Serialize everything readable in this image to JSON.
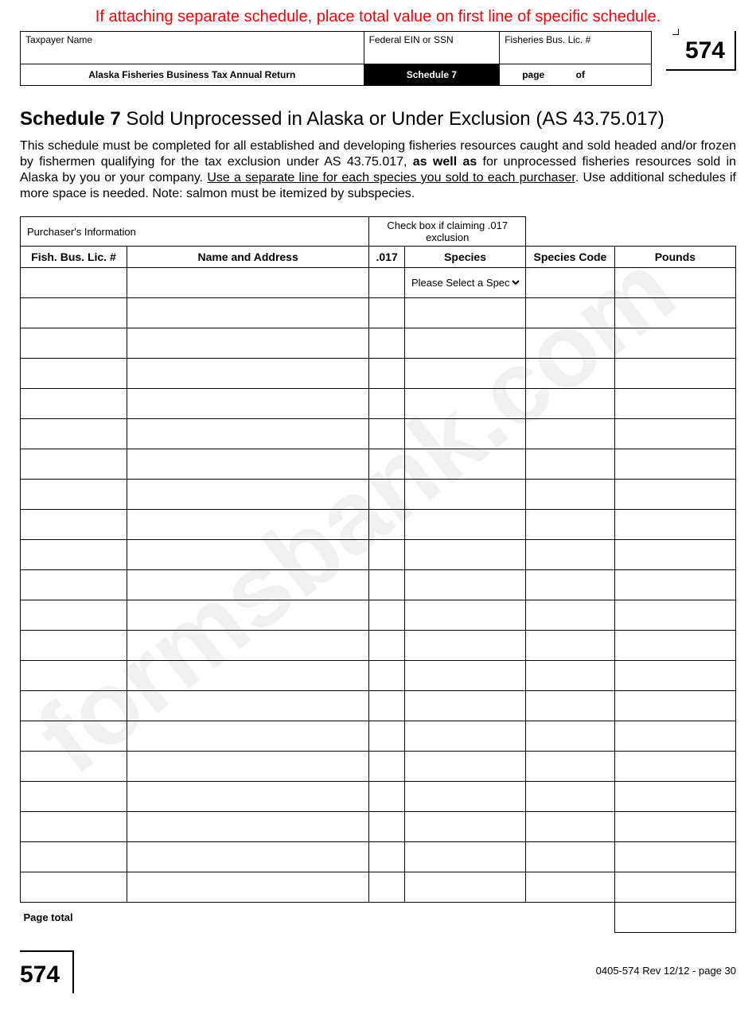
{
  "colors": {
    "notice_red": "#ff0000",
    "text_black": "#000000",
    "schedule_bg": "#000000",
    "schedule_fg": "#ffffff",
    "watermark_gray": "#555555"
  },
  "topNotice": "If attaching separate schedule, place total value on first line of specific schedule.",
  "header": {
    "taxpayerNameLabel": "Taxpayer Name",
    "einLabel": "Federal EIN or SSN",
    "licLabel": "Fisheries Bus. Lic. #",
    "formTitle": "Alaska Fisheries Business Tax Annual Return",
    "scheduleLabel": "Schedule 7",
    "pageWord": "page",
    "ofWord": "of",
    "formNumber": "574"
  },
  "schedule": {
    "headingBold": "Schedule 7",
    "headingRest": " Sold Unprocessed in Alaska or Under Exclusion (AS 43.75.017)",
    "instructionsPre": "This schedule must be completed for all established and developing fisheries resources caught and sold headed and/or frozen by fishermen qualifying for the tax exclusion under AS 43.75.017, ",
    "instructionsBold": "as well as",
    "instructionsMid": " for unprocessed fisheries resources sold in Alaska by you or your company. ",
    "instructionsUnderline": "Use a separate line for each species you sold to each purchaser",
    "instructionsPost": ". Use additional schedules if more space is needed. Note: salmon must be itemized by subspecies."
  },
  "table": {
    "groupPurchaser": "Purchaser's Information",
    "groupExclusion": "Check box if claiming .017 exclusion",
    "colLic": "Fish. Bus. Lic. #",
    "colName": "Name and Address",
    "col017": ".017",
    "colSpecies": "Species",
    "colCode": "Species Code",
    "colPounds": "Pounds",
    "speciesPlaceholder": "Please Select a Species",
    "rowCount": 21,
    "pageTotalLabel": "Page total"
  },
  "footer": {
    "formNumber": "574",
    "revision": "0405-574  Rev 12/12 - page 30"
  },
  "watermark": "formsbank.com"
}
